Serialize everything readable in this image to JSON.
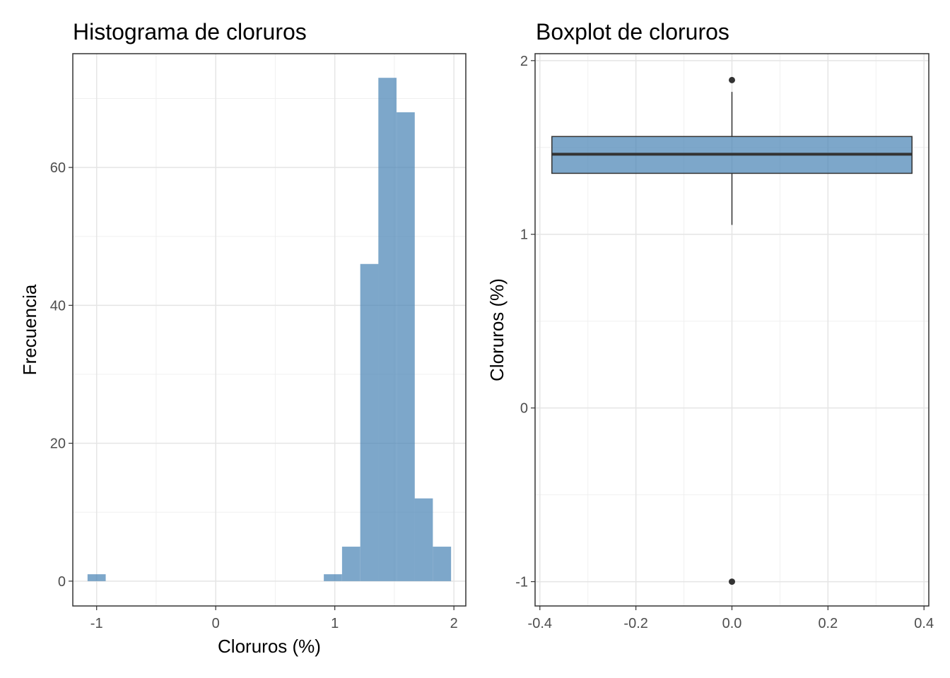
{
  "chart_data": [
    {
      "type": "bar",
      "subtype": "histogram",
      "title": "Histograma de cloruros",
      "xlabel": "Cloruros (%)",
      "ylabel": "Frecuencia",
      "xlim": [
        -1.2,
        2.1
      ],
      "ylim": [
        -3.6,
        76.5
      ],
      "xticks": [
        -1,
        0,
        1,
        2
      ],
      "xtick_labels": [
        "-1",
        "0",
        "1",
        "2"
      ],
      "yticks": [
        0,
        20,
        40,
        60
      ],
      "ytick_labels": [
        "0",
        "20",
        "40",
        "60"
      ],
      "bin_width": 0.1526,
      "bin_centers": [
        -1.0,
        0.984,
        1.137,
        1.29,
        1.442,
        1.595,
        1.747,
        1.9
      ],
      "counts": [
        1,
        1,
        5,
        46,
        73,
        68,
        12,
        5
      ],
      "grid": true,
      "fill_color": "#4682B4"
    },
    {
      "type": "boxplot",
      "title": "Boxplot de cloruros",
      "xlabel": "",
      "ylabel": "Cloruros (%)",
      "xlim": [
        -0.41,
        0.41
      ],
      "ylim": [
        -1.14,
        2.04
      ],
      "xticks": [
        -0.4,
        -0.2,
        0.0,
        0.2,
        0.4
      ],
      "xtick_labels": [
        "-0.4",
        "-0.2",
        "0.0",
        "0.2",
        "0.4"
      ],
      "yticks": [
        -1,
        0,
        1,
        2
      ],
      "ytick_labels": [
        "-1",
        "0",
        "1",
        "2"
      ],
      "box": {
        "x_center": 0,
        "half_width": 0.375,
        "q1": 1.351,
        "median": 1.461,
        "q3": 1.563,
        "whisker_low": 1.054,
        "whisker_high": 1.82
      },
      "outliers": [
        1.888,
        -1.0
      ],
      "grid": true,
      "fill_color": "#4682B4"
    }
  ]
}
